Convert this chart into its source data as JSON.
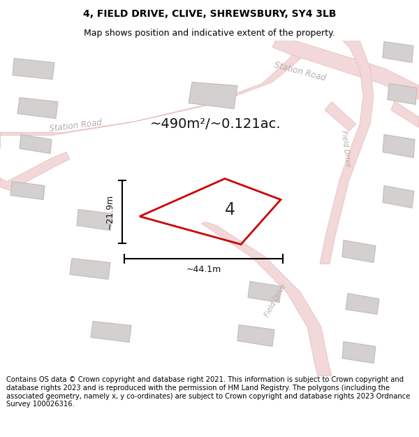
{
  "title": "4, FIELD DRIVE, CLIVE, SHREWSBURY, SY4 3LB",
  "subtitle": "Map shows position and indicative extent of the property.",
  "footer": "Contains OS data © Crown copyright and database right 2021. This information is subject to Crown copyright and database rights 2023 and is reproduced with the permission of HM Land Registry. The polygons (including the associated geometry, namely x, y co-ordinates) are subject to Crown copyright and database rights 2023 Ordnance Survey 100026316.",
  "bg_color": "#ffffff",
  "map_bg": "#f9f4f4",
  "road_fill": "#f2d8d8",
  "road_edge": "#e8b8b8",
  "building_fill": "#d4d0d0",
  "building_edge": "#c0bcbc",
  "plot_color": "#cc0000",
  "area_text": "~490m²/~0.121ac.",
  "width_text": "~44.1m",
  "height_text": "~21.9m",
  "plot_number": "4",
  "title_fontsize": 10,
  "subtitle_fontsize": 9,
  "footer_fontsize": 7.2,
  "road_label_color": "#b8aaaa",
  "road_label_size": 8.5
}
